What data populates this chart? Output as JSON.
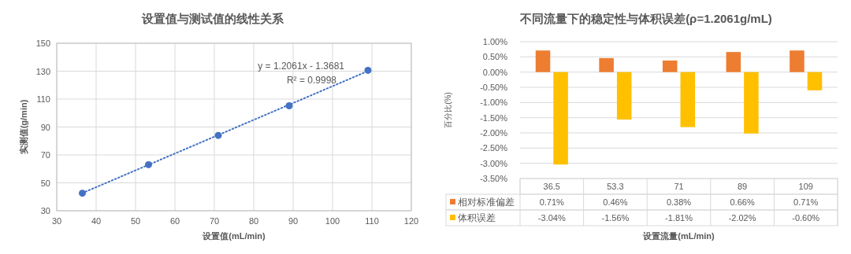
{
  "chart_data": [
    {
      "type": "scatter",
      "title": "设置值与测试值的线性关系",
      "xlabel": "设置值(mL/min)",
      "ylabel": "实测值(g/min)",
      "xlim": [
        30,
        120
      ],
      "ylim": [
        30,
        150
      ],
      "xticks": [
        30,
        40,
        50,
        60,
        70,
        80,
        90,
        100,
        110,
        120
      ],
      "yticks": [
        30,
        50,
        70,
        90,
        110,
        130,
        150
      ],
      "grid": true,
      "series": [
        {
          "type": "scatter",
          "color": "#4472c4",
          "marker": "circle",
          "x": [
            36.5,
            53.3,
            71,
            89,
            109
          ],
          "values": [
            42.6,
            63,
            84,
            105.2,
            130.6
          ]
        },
        {
          "type": "line",
          "color": "#4472c4",
          "marker": "none",
          "line_style": "dotted",
          "x": [
            36.5,
            109
          ],
          "values": [
            42.65,
            130.1
          ]
        }
      ],
      "annotations": [
        "y = 1.2061x - 1.3681",
        "R² = 0.9998"
      ]
    },
    {
      "type": "bar",
      "title": "不同流量下的稳定性与体积误差(ρ=1.2061g/mL)",
      "xlabel": "设置流量(mL/min)",
      "ylabel": "百分比(%)",
      "categories": [
        "36.5",
        "53.3",
        "71",
        "89",
        "109"
      ],
      "ylim": [
        -3.5,
        1
      ],
      "yticks": [
        {
          "value": -3.5,
          "label": "-3.50%"
        },
        {
          "value": -3,
          "label": "-3.00%"
        },
        {
          "value": -2.5,
          "label": "-2.50%"
        },
        {
          "value": -2,
          "label": "-2.00%"
        },
        {
          "value": -1.5,
          "label": "-1.50%"
        },
        {
          "value": -1,
          "label": "-1.00%"
        },
        {
          "value": -0.5,
          "label": "-0.50%"
        },
        {
          "value": 0,
          "label": "0.00%"
        },
        {
          "value": 0.5,
          "label": "0.50%"
        },
        {
          "value": 1,
          "label": "1.00%"
        }
      ],
      "grid": "y",
      "legend": "bottom",
      "series": [
        {
          "name": "相对标准偏差",
          "color": "#ed7d31",
          "values": [
            0.71,
            0.46,
            0.38,
            0.66,
            0.71
          ],
          "value_labels": [
            "0.71%",
            "0.46%",
            "0.38%",
            "0.66%",
            "0.71%"
          ]
        },
        {
          "name": "体积误差",
          "color": "#ffc000",
          "values": [
            -3.04,
            -1.56,
            -1.81,
            -2.02,
            -0.6
          ],
          "value_labels": [
            "-3.04%",
            "-1.56%",
            "-1.81%",
            "-2.02%",
            "-0.60%"
          ]
        }
      ]
    }
  ]
}
